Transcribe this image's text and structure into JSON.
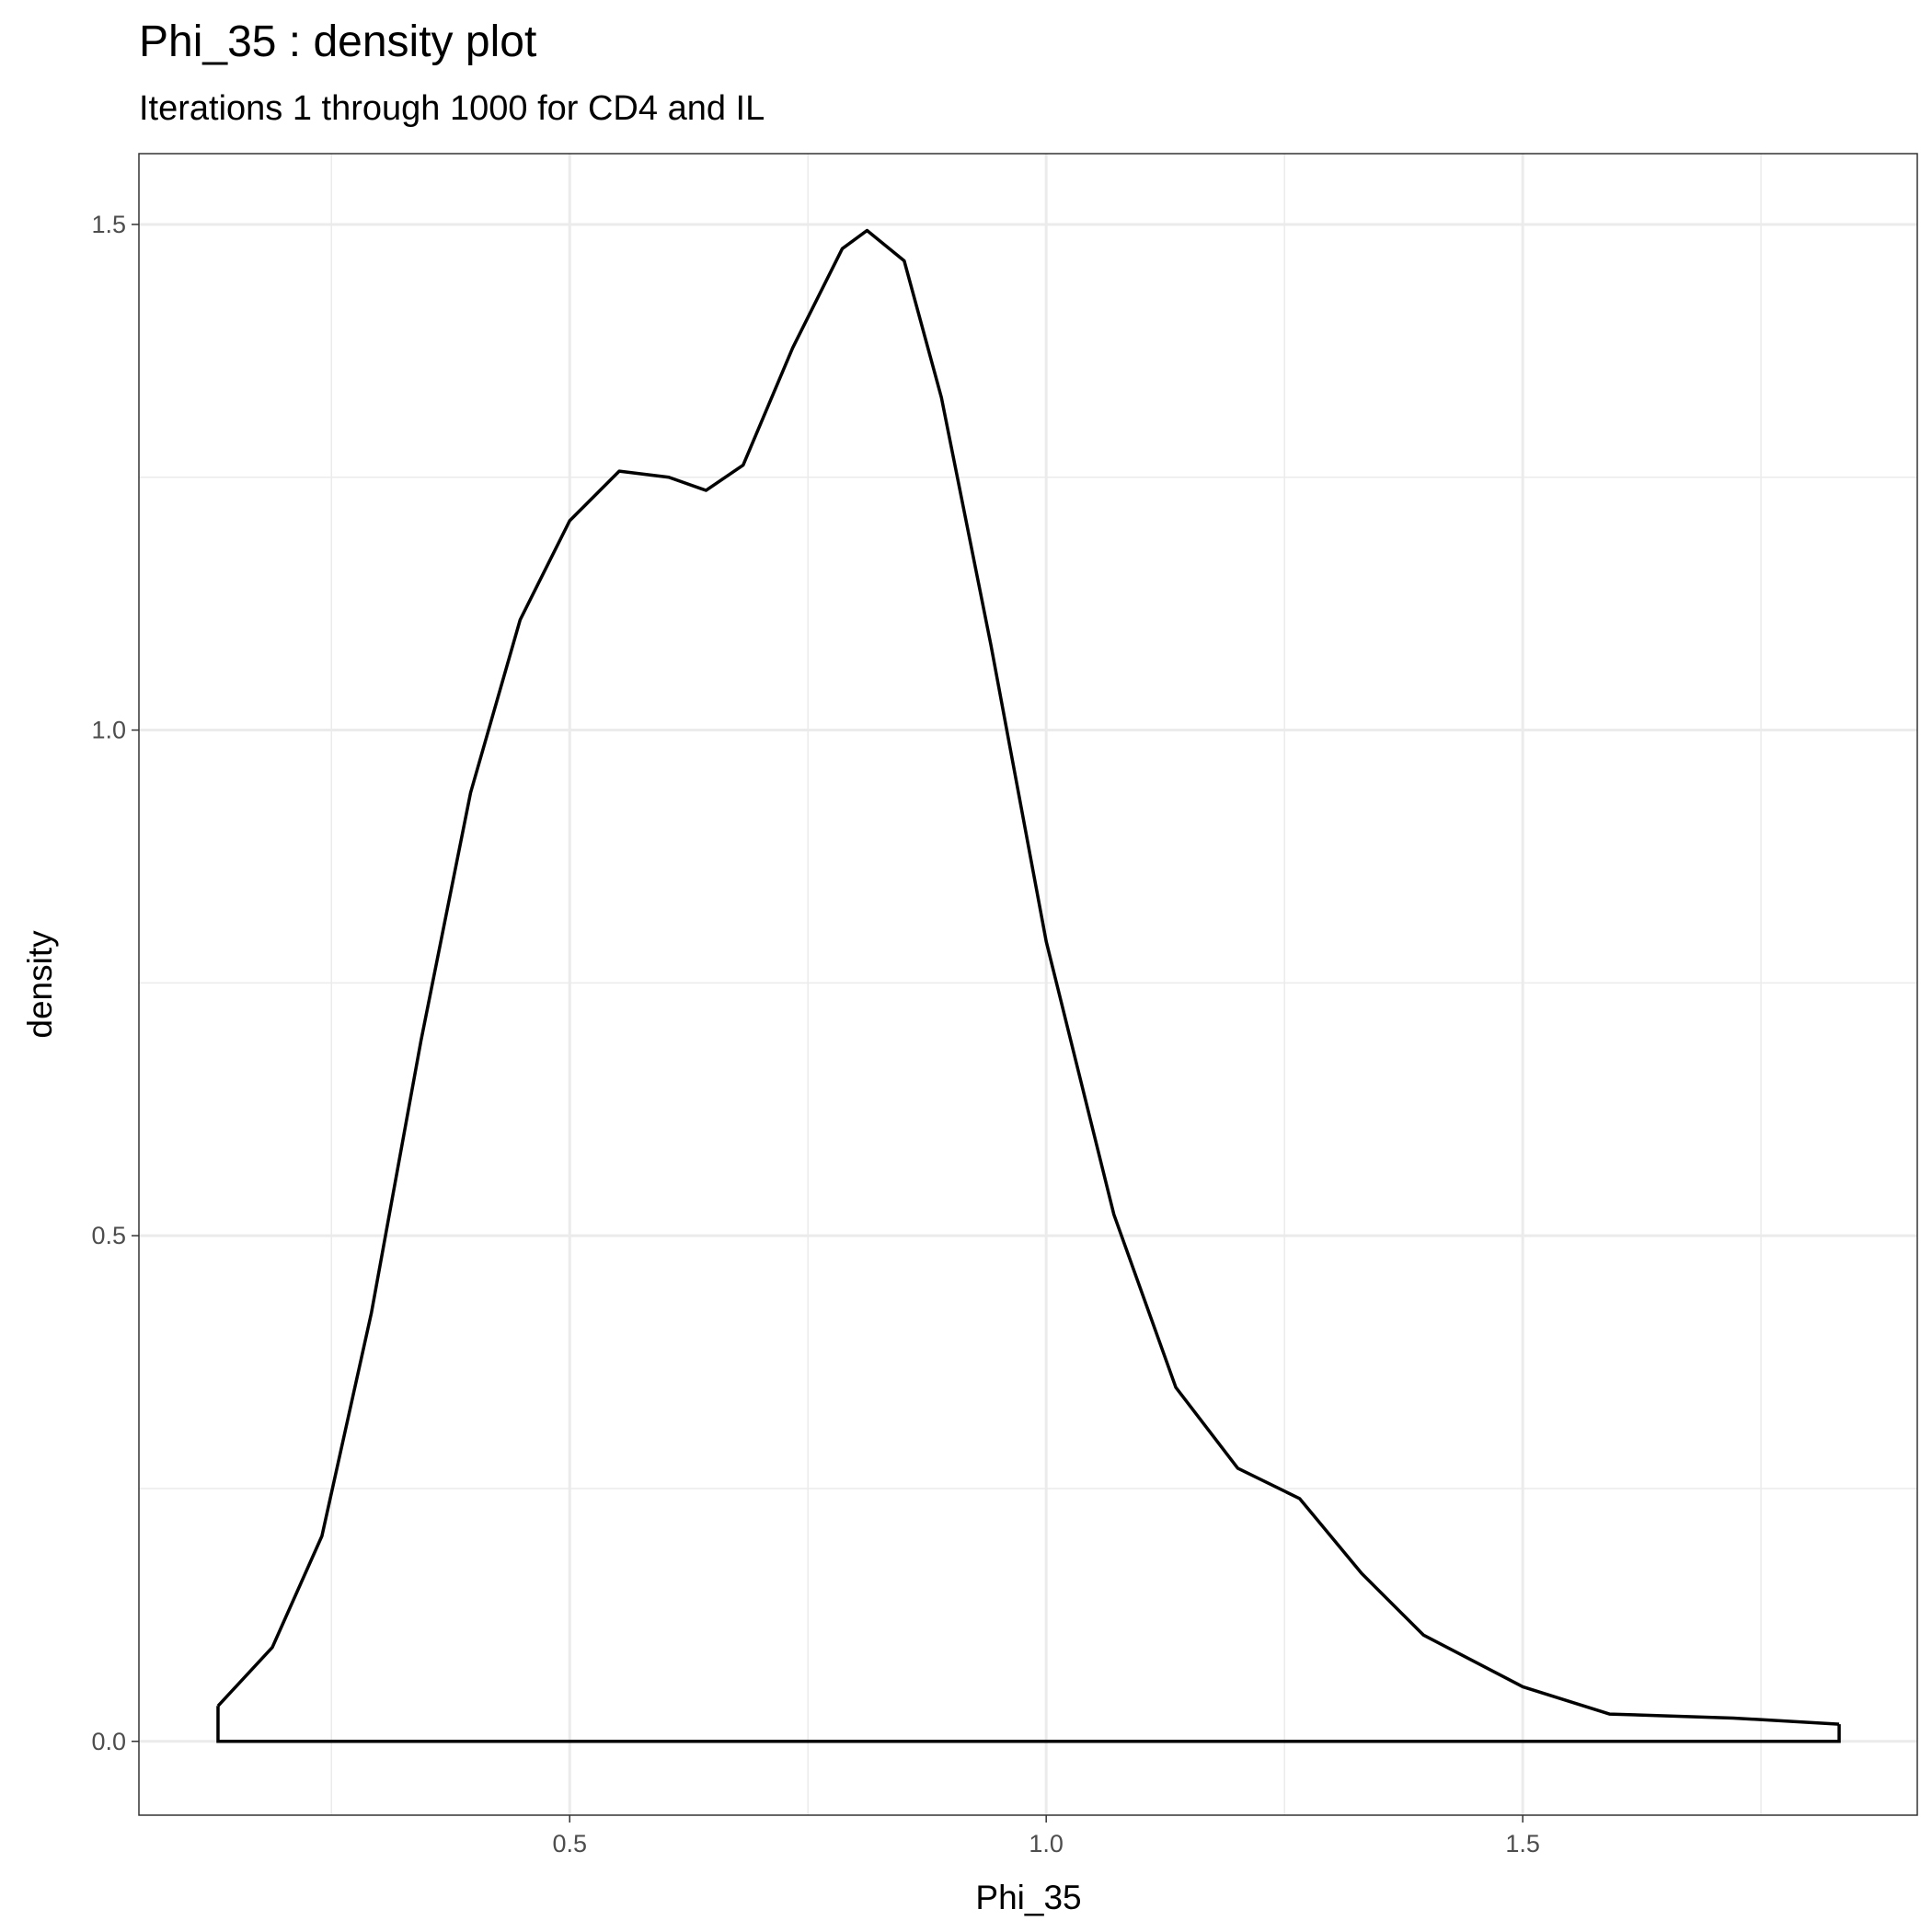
{
  "chart_data": {
    "type": "density",
    "title": "Phi_35 : density plot",
    "subtitle": "Iterations 1 through 1000 for CD4 and IL",
    "x_label": "Phi_35",
    "y_label": "density",
    "x": [
      0.131,
      0.188,
      0.24,
      0.292,
      0.344,
      0.396,
      0.448,
      0.5,
      0.552,
      0.604,
      0.643,
      0.682,
      0.734,
      0.786,
      0.812,
      0.851,
      0.89,
      0.942,
      1.0,
      1.071,
      1.136,
      1.201,
      1.266,
      1.331,
      1.396,
      1.5,
      1.591,
      1.721,
      1.832
    ],
    "values": [
      0.035,
      0.093,
      0.203,
      0.424,
      0.693,
      0.938,
      1.109,
      1.207,
      1.256,
      1.25,
      1.237,
      1.262,
      1.378,
      1.476,
      1.494,
      1.464,
      1.329,
      1.084,
      0.791,
      0.521,
      0.35,
      0.27,
      0.24,
      0.166,
      0.105,
      0.054,
      0.027,
      0.023,
      0.017
    ],
    "color": "#000000",
    "xlim": [
      0.048,
      1.914
    ],
    "ylim": [
      -0.073,
      1.57
    ],
    "xticks": [
      {
        "value": 0.5,
        "label": "0.5"
      },
      {
        "value": 1.0,
        "label": "1.0"
      },
      {
        "value": 1.5,
        "label": "1.5"
      }
    ],
    "yticks": [
      {
        "value": 0.0,
        "label": "0.0"
      },
      {
        "value": 0.5,
        "label": "0.5"
      },
      {
        "value": 1.0,
        "label": "1.0"
      },
      {
        "value": 1.5,
        "label": "1.5"
      }
    ],
    "minor_xticks": [
      0.25,
      0.75,
      1.25,
      1.75
    ],
    "minor_yticks": [
      0.25,
      0.75,
      1.25
    ],
    "grid": true
  }
}
